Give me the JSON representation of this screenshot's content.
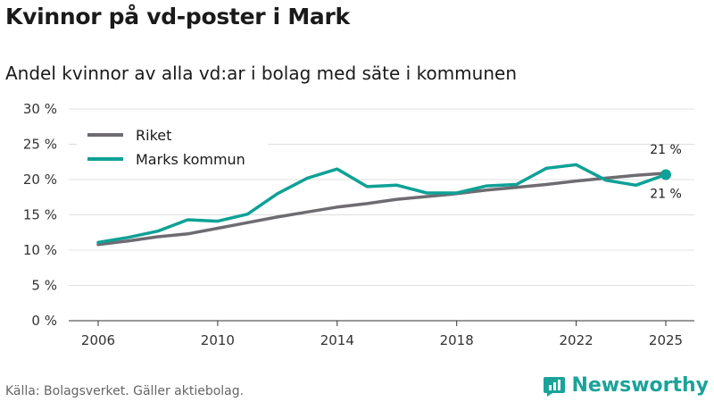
{
  "title": "Kvinnor på vd-poster i Mark",
  "subtitle": "Andel kvinnor av alla vd:ar i bolag med säte i kommunen",
  "source": "Källa: Bolagsverket. Gäller aktiebolag.",
  "brand": "Newsworthy",
  "colors": {
    "riket": "#6e6b71",
    "kommun": "#0fa196",
    "grid": "#e0e0e0",
    "brand": "#1aa39a"
  },
  "chart_data": {
    "type": "line",
    "title": "Kvinnor på vd-poster i Mark",
    "xlabel": "",
    "ylabel": "",
    "ylim": [
      0,
      30
    ],
    "xlim": [
      2006,
      2025
    ],
    "yticks": [
      0,
      5,
      10,
      15,
      20,
      25,
      30
    ],
    "ytick_labels": [
      "0 %",
      "5 %",
      "10 %",
      "15 %",
      "20 %",
      "25 %",
      "30 %"
    ],
    "xticks": [
      2006,
      2010,
      2014,
      2018,
      2022,
      2025
    ],
    "xtick_labels": [
      "2006",
      "2010",
      "2014",
      "2018",
      "2022",
      "2025"
    ],
    "legend_position": "top-left",
    "x": [
      2006,
      2007,
      2008,
      2009,
      2010,
      2011,
      2012,
      2013,
      2014,
      2015,
      2016,
      2017,
      2018,
      2019,
      2020,
      2021,
      2022,
      2023,
      2024,
      2025
    ],
    "series": [
      {
        "name": "Riket",
        "color": "#6e6b71",
        "values": [
          10.8,
          11.3,
          11.9,
          12.3,
          13.1,
          13.9,
          14.7,
          15.4,
          16.1,
          16.6,
          17.2,
          17.6,
          18.0,
          18.5,
          18.9,
          19.3,
          19.8,
          20.2,
          20.6,
          20.9
        ]
      },
      {
        "name": "Marks kommun",
        "color": "#0fa196",
        "values": [
          11.1,
          11.8,
          12.7,
          14.3,
          14.1,
          15.1,
          18.0,
          20.2,
          21.5,
          19.0,
          19.2,
          18.1,
          18.1,
          19.1,
          19.3,
          21.6,
          22.1,
          19.9,
          19.2,
          20.7
        ]
      }
    ],
    "annotations": [
      {
        "series": "Riket",
        "text": "21 %",
        "position": "above"
      },
      {
        "series": "Marks kommun",
        "text": "21 %",
        "position": "below"
      }
    ]
  }
}
